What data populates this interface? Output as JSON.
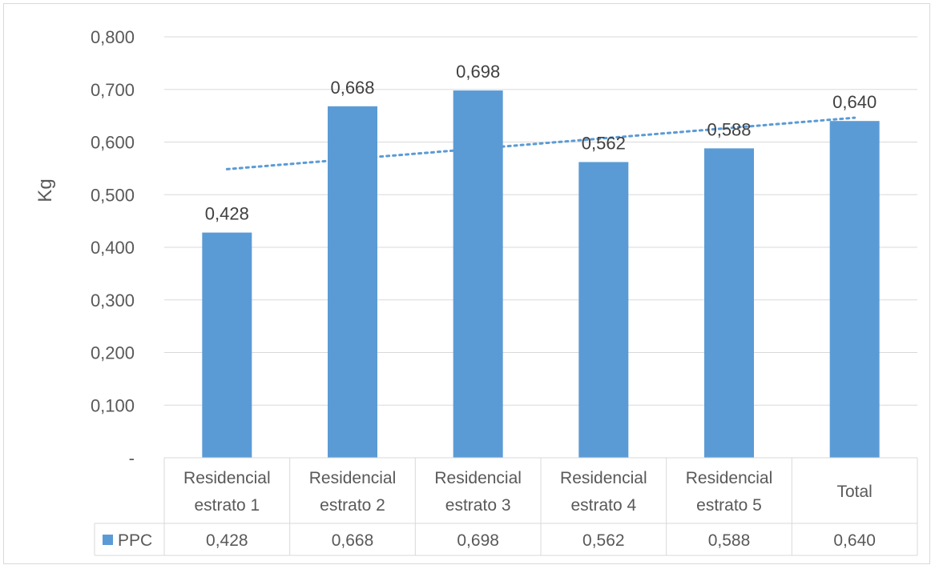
{
  "chart_data": {
    "type": "bar",
    "ylabel": "Kg",
    "ylim": [
      0,
      0.8
    ],
    "y_tick_labels": [
      "-",
      "0,100",
      "0,200",
      "0,300",
      "0,400",
      "0,500",
      "0,600",
      "0,700",
      "0,800"
    ],
    "categories": [
      [
        "Residencial",
        "estrato 1"
      ],
      [
        "Residencial",
        "estrato 2"
      ],
      [
        "Residencial",
        "estrato 3"
      ],
      [
        "Residencial",
        "estrato 4"
      ],
      [
        "Residencial",
        "estrato 5"
      ],
      [
        "Total"
      ]
    ],
    "series": [
      {
        "name": "PPC",
        "values": [
          0.428,
          0.668,
          0.698,
          0.562,
          0.588,
          0.64
        ],
        "labels": [
          "0,428",
          "0,668",
          "0,698",
          "0,562",
          "0,588",
          "0,640"
        ],
        "color": "#5b9bd5"
      }
    ],
    "trendline": {
      "type": "linear",
      "style": "dotted",
      "color": "#5b9bd5"
    },
    "grid": true,
    "data_table": true,
    "legend": "data-table"
  }
}
